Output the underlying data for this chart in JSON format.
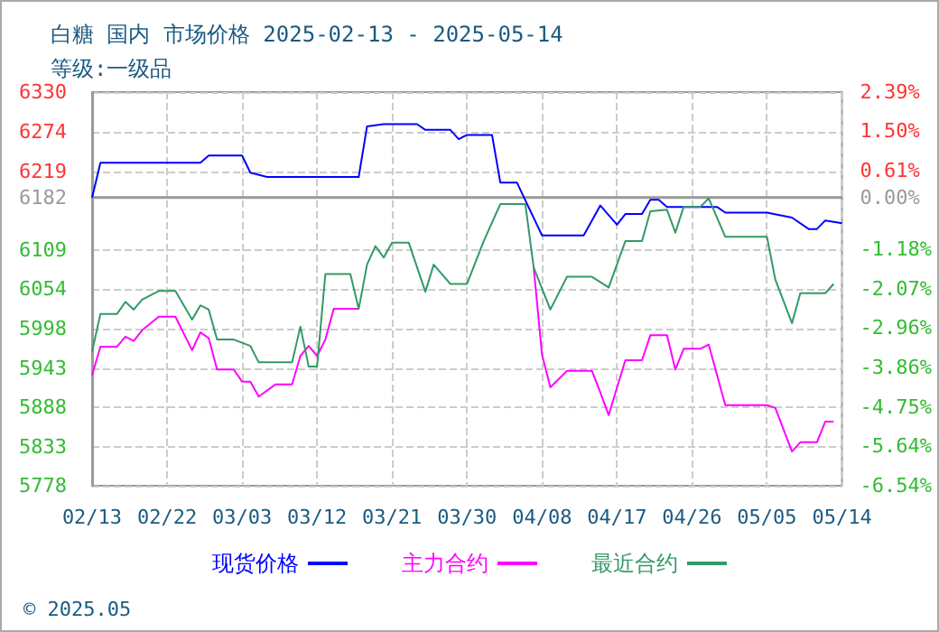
{
  "chart_data": {
    "type": "line",
    "title": "白糖 国内 市场价格 2025-02-13 - 2025-05-14",
    "subtitle": "等级:一级品",
    "annotations": [
      "© 2025.05"
    ],
    "series": [
      {
        "name": "现货价格",
        "color": "#0000ff",
        "x": [
          "2025-02-13",
          "2025-02-14",
          "2025-02-26",
          "2025-02-27",
          "2025-03-03",
          "2025-03-04",
          "2025-03-06",
          "2025-03-17",
          "2025-03-18",
          "2025-03-20",
          "2025-03-24",
          "2025-03-25",
          "2025-03-28",
          "2025-03-29",
          "2025-03-30",
          "2025-04-02",
          "2025-04-03",
          "2025-04-05",
          "2025-04-08",
          "2025-04-13",
          "2025-04-15",
          "2025-04-17",
          "2025-04-18",
          "2025-04-20",
          "2025-04-21",
          "2025-04-22",
          "2025-04-23",
          "2025-04-29",
          "2025-04-30",
          "2025-05-05",
          "2025-05-08",
          "2025-05-10",
          "2025-05-11",
          "2025-05-12",
          "2025-05-14"
        ],
        "values": [
          6182,
          6231,
          6231,
          6241,
          6241,
          6217,
          6211,
          6211,
          6282,
          6285,
          6285,
          6277,
          6277,
          6264,
          6270,
          6270,
          6203,
          6203,
          6129,
          6129,
          6171,
          6144,
          6159,
          6159,
          6179,
          6179,
          6169,
          6169,
          6161,
          6161,
          6154,
          6138,
          6138,
          6150,
          6146
        ]
      },
      {
        "name": "主力合约",
        "color": "#ff00ff",
        "x": [
          "2025-02-13",
          "2025-02-14",
          "2025-02-16",
          "2025-02-17",
          "2025-02-18",
          "2025-02-19",
          "2025-02-21",
          "2025-02-23",
          "2025-02-25",
          "2025-02-26",
          "2025-02-27",
          "2025-02-28",
          "2025-03-02",
          "2025-03-03",
          "2025-03-04",
          "2025-03-05",
          "2025-03-07",
          "2025-03-09",
          "2025-03-10",
          "2025-03-11",
          "2025-03-12",
          "2025-03-13",
          "2025-03-14",
          "2025-03-17",
          "2025-03-18",
          "2025-03-19",
          "2025-03-20",
          "2025-03-21",
          "2025-03-23",
          "2025-03-25",
          "2025-03-26",
          "2025-03-28",
          "2025-03-30",
          "2025-04-01",
          "2025-04-03",
          "2025-04-06",
          "2025-04-07",
          "2025-04-08",
          "2025-04-09",
          "2025-04-11",
          "2025-04-14",
          "2025-04-15",
          "2025-04-16",
          "2025-04-18",
          "2025-04-20",
          "2025-04-21",
          "2025-04-23",
          "2025-04-24",
          "2025-04-25",
          "2025-04-27",
          "2025-04-28",
          "2025-04-30",
          "2025-05-05",
          "2025-05-06",
          "2025-05-08",
          "2025-05-09",
          "2025-05-11",
          "2025-05-12",
          "2025-05-13"
        ],
        "values": [
          5933,
          5973,
          5973,
          5987,
          5981,
          5996,
          6015,
          6015,
          5968,
          5993,
          5985,
          5941,
          5941,
          5924,
          5924,
          5903,
          5920,
          5920,
          5960,
          5974,
          5960,
          5983,
          6026,
          6026,
          null,
          null,
          null,
          null,
          null,
          null,
          null,
          null,
          null,
          null,
          null,
          null,
          6084,
          5962,
          5916,
          5939,
          5939,
          5909,
          5877,
          5954,
          5954,
          5989,
          5989,
          5941,
          5970,
          5970,
          5976,
          5891,
          5891,
          5887,
          5826,
          5839,
          5839,
          5868,
          5868
        ]
      },
      {
        "name": "最近合约",
        "color": "#339966",
        "x": [
          "2025-02-13",
          "2025-02-14",
          "2025-02-16",
          "2025-02-17",
          "2025-02-18",
          "2025-02-19",
          "2025-02-21",
          "2025-02-23",
          "2025-02-25",
          "2025-02-26",
          "2025-02-27",
          "2025-02-28",
          "2025-03-02",
          "2025-03-04",
          "2025-03-05",
          "2025-03-09",
          "2025-03-10",
          "2025-03-11",
          "2025-03-12",
          "2025-03-13",
          "2025-03-16",
          "2025-03-17",
          "2025-03-18",
          "2025-03-19",
          "2025-03-20",
          "2025-03-21",
          "2025-03-23",
          "2025-03-25",
          "2025-03-26",
          "2025-03-28",
          "2025-03-30",
          "2025-04-01",
          "2025-04-03",
          "2025-04-06",
          "2025-04-07",
          "2025-04-09",
          "2025-04-11",
          "2025-04-14",
          "2025-04-16",
          "2025-04-18",
          "2025-04-20",
          "2025-04-21",
          "2025-04-23",
          "2025-04-24",
          "2025-04-25",
          "2025-04-27",
          "2025-04-28",
          "2025-04-30",
          "2025-05-05",
          "2025-05-06",
          "2025-05-08",
          "2025-05-09",
          "2025-05-12",
          "2025-05-13"
        ],
        "values": [
          5966,
          6019,
          6019,
          6036,
          6025,
          6039,
          6051,
          6051,
          6011,
          6031,
          6025,
          5983,
          5983,
          5974,
          5951,
          5951,
          6001,
          5945,
          5945,
          6075,
          6075,
          6026,
          6088,
          6114,
          6098,
          6119,
          6119,
          6050,
          6088,
          6061,
          6061,
          6121,
          6173,
          6173,
          6084,
          6025,
          6071,
          6071,
          6056,
          6121,
          6121,
          6163,
          6165,
          6133,
          6169,
          6169,
          6181,
          6127,
          6127,
          6067,
          6006,
          6048,
          6048,
          6061
        ]
      }
    ],
    "xlim": [
      "2025-02-13",
      "2025-05-14"
    ],
    "xticks": [
      {
        "value": "2025-02-13",
        "label": "02/13"
      },
      {
        "value": "2025-02-22",
        "label": "02/22"
      },
      {
        "value": "2025-03-03",
        "label": "03/03"
      },
      {
        "value": "2025-03-12",
        "label": "03/12"
      },
      {
        "value": "2025-03-21",
        "label": "03/21"
      },
      {
        "value": "2025-03-30",
        "label": "03/30"
      },
      {
        "value": "2025-04-08",
        "label": "04/08"
      },
      {
        "value": "2025-04-17",
        "label": "04/17"
      },
      {
        "value": "2025-04-26",
        "label": "04/26"
      },
      {
        "value": "2025-05-05",
        "label": "05/05"
      },
      {
        "value": "2025-05-14",
        "label": "05/14"
      }
    ],
    "ylim": [
      5778,
      6330
    ],
    "yticks": [
      5778,
      5833,
      5888,
      5943,
      5998,
      6054,
      6109,
      6182,
      6219,
      6274,
      6330
    ],
    "y2lim": [
      -6.54,
      2.39
    ],
    "y2ticks": [
      {
        "value": -6.54,
        "label": "-6.54%"
      },
      {
        "value": -5.64,
        "label": "-5.64%"
      },
      {
        "value": -4.75,
        "label": "-4.75%"
      },
      {
        "value": -3.86,
        "label": "-3.86%"
      },
      {
        "value": -2.96,
        "label": "-2.96%"
      },
      {
        "value": -2.07,
        "label": "-2.07%"
      },
      {
        "value": -1.18,
        "label": "-1.18%"
      },
      {
        "value": 0,
        "label": "0.00%"
      },
      {
        "value": 0.61,
        "label": "0.61%"
      },
      {
        "value": 1.5,
        "label": "1.50%"
      },
      {
        "value": 2.39,
        "label": "2.39%"
      }
    ],
    "ref_lines": [
      {
        "axis": "y2",
        "value": 0,
        "color": "#999999",
        "line_style": "solid"
      }
    ],
    "grid": true,
    "legend": "bottom",
    "marker": "none",
    "line_style": "solid"
  }
}
